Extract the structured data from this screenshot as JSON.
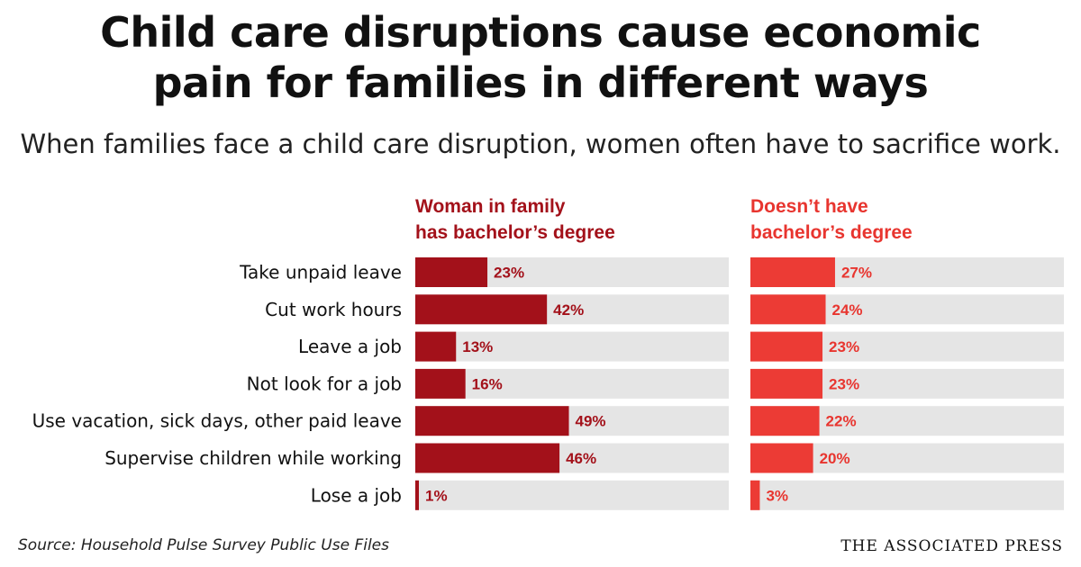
{
  "title_line1": "Child care disruptions cause economic",
  "title_line2": "pain for families in different ways",
  "subtitle": "When families face a child care disruption, women often have to sacrifice work.",
  "source": "Source: Household Pulse Survey Public Use Files",
  "credit": "THE ASSOCIATED PRESS",
  "colors": {
    "series1": "#a3111a",
    "series2": "#ec3b35",
    "track": "#e5e5e5",
    "series1_text": "#a3111a",
    "series2_text": "#e8352f"
  },
  "chart_data": {
    "type": "bar",
    "orientation": "horizontal",
    "categories": [
      "Take unpaid leave",
      "Cut work hours",
      "Leave a job",
      "Not look for a job",
      "Use vacation, sick days, other paid leave",
      "Supervise children while working",
      "Lose a job"
    ],
    "series": [
      {
        "name_lines": [
          "Woman in family",
          "has bachelor’s degree"
        ],
        "values": [
          23,
          42,
          13,
          16,
          49,
          46,
          1
        ],
        "labels": [
          "23%",
          "42%",
          "13%",
          "16%",
          "49%",
          "46%",
          "1%"
        ]
      },
      {
        "name_lines": [
          "Doesn’t have",
          "bachelor’s degree"
        ],
        "values": [
          27,
          24,
          23,
          23,
          22,
          20,
          3
        ],
        "labels": [
          "27%",
          "24%",
          "23%",
          "23%",
          "22%",
          "20%",
          "3%"
        ]
      }
    ],
    "xlim": [
      0,
      100
    ]
  }
}
